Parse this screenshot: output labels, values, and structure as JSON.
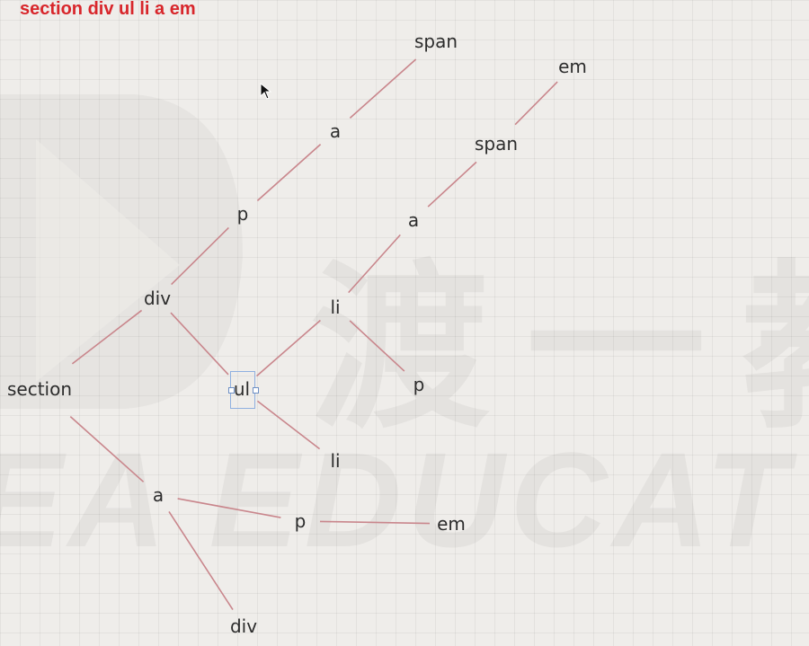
{
  "title": "section div ul li a em",
  "colors": {
    "title": "#d8262b",
    "edge": "#c9868c",
    "node": "#2c2c2c",
    "selection": "#8fb0e0"
  },
  "watermark": {
    "cn": "渡一教",
    "en": "EA EDUCAT"
  },
  "nodes": [
    {
      "id": "section",
      "label": "section"
    },
    {
      "id": "div1",
      "label": "div"
    },
    {
      "id": "p1",
      "label": "p"
    },
    {
      "id": "a1",
      "label": "a"
    },
    {
      "id": "span1",
      "label": "span"
    },
    {
      "id": "ul",
      "label": "ul"
    },
    {
      "id": "li1",
      "label": "li"
    },
    {
      "id": "a2",
      "label": "a"
    },
    {
      "id": "span2",
      "label": "span"
    },
    {
      "id": "em1",
      "label": "em"
    },
    {
      "id": "p2",
      "label": "p"
    },
    {
      "id": "li2",
      "label": "li"
    },
    {
      "id": "a3",
      "label": "a"
    },
    {
      "id": "p3",
      "label": "p"
    },
    {
      "id": "em2",
      "label": "em"
    },
    {
      "id": "div2",
      "label": "div"
    }
  ],
  "edges": [
    [
      "section",
      "div1"
    ],
    [
      "div1",
      "p1"
    ],
    [
      "p1",
      "a1"
    ],
    [
      "a1",
      "span1"
    ],
    [
      "div1",
      "ul"
    ],
    [
      "ul",
      "li1"
    ],
    [
      "li1",
      "a2"
    ],
    [
      "a2",
      "span2"
    ],
    [
      "span2",
      "em1"
    ],
    [
      "li1",
      "p2"
    ],
    [
      "ul",
      "li2"
    ],
    [
      "section",
      "a3"
    ],
    [
      "a3",
      "p3"
    ],
    [
      "p3",
      "em2"
    ],
    [
      "a3",
      "div2"
    ]
  ],
  "selected": "ul"
}
